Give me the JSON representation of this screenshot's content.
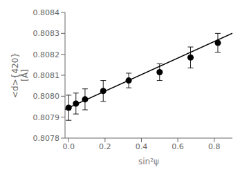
{
  "chart_data": {
    "type": "scatter",
    "xlabel": "sin²ψ",
    "ylabel": "<d>{420}\n[Å]",
    "series": [
      {
        "type": "line",
        "x": [
          -0.02,
          0.9
        ],
        "values": [
          0.8079371,
          0.8083005
        ],
        "color": "#000000"
      },
      {
        "type": "scatter",
        "x": [
          0.0,
          0.04,
          0.09,
          0.19,
          0.33,
          0.5,
          0.67,
          0.82
        ],
        "values": [
          0.807945,
          0.807965,
          0.807985,
          0.808025,
          0.808075,
          0.808115,
          0.808185,
          0.808255
        ],
        "yerr": [
          6e-05,
          5e-05,
          5e-05,
          5e-05,
          3.5e-05,
          4e-05,
          5e-05,
          4.5e-05
        ],
        "color": "#000000",
        "marker": "circle"
      }
    ],
    "xlim": [
      -0.02,
      0.9
    ],
    "ylim": [
      0.8078,
      0.8084
    ],
    "xticks": [
      {
        "value": 0,
        "label": "0.0"
      },
      0.2,
      0.4,
      0.6,
      0.8
    ],
    "yticks": [
      0.8078,
      0.8079,
      {
        "value": 0.808,
        "label": "0.8080"
      },
      0.8081,
      0.8082,
      0.8083,
      0.8084
    ],
    "grid": false
  }
}
